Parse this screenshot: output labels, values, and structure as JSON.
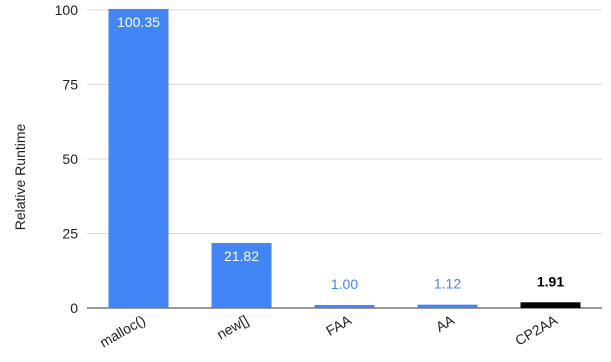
{
  "chart_data": {
    "type": "bar",
    "categories": [
      "malloc()",
      "new[]",
      "FAA",
      "AA",
      "CP2AA"
    ],
    "values": [
      100.35,
      21.82,
      1.0,
      1.12,
      1.91
    ],
    "data_labels": [
      "100.35",
      "21.82",
      "1.00",
      "1.12",
      "1.91"
    ],
    "colors": [
      "#4285f4",
      "#4285f4",
      "#4285f4",
      "#4285f4",
      "#000000"
    ],
    "label_colors": [
      "#ffffff",
      "#ffffff",
      "#4285f4",
      "#4285f4",
      "#000000"
    ],
    "label_inside": [
      true,
      true,
      false,
      false,
      false
    ],
    "label_bold": [
      false,
      false,
      false,
      false,
      true
    ],
    "ylabel": "Relative Runtime",
    "ylim": [
      0,
      100
    ],
    "yticks": [
      "0",
      "25",
      "50",
      "75",
      "100"
    ],
    "grid": true,
    "legend": "none"
  }
}
